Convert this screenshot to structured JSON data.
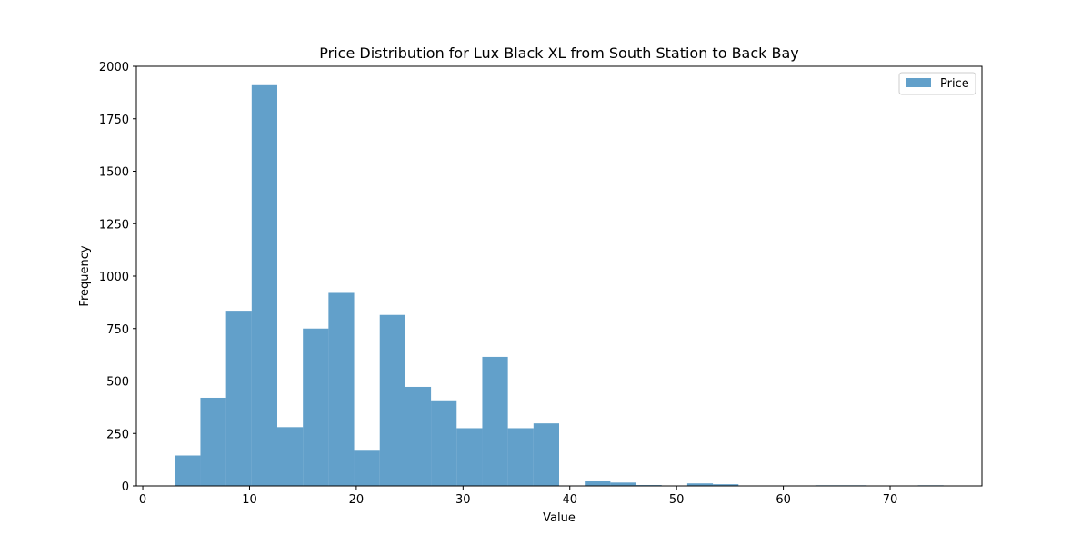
{
  "chart_data": {
    "type": "bar",
    "title": "Price Distribution for Lux Black XL from South Station to Back Bay",
    "xlabel": "Value",
    "ylabel": "Frequency",
    "xlim": [
      -0.6,
      78.6
    ],
    "ylim": [
      0,
      2000
    ],
    "xticks": [
      0,
      10,
      20,
      30,
      40,
      50,
      60,
      70
    ],
    "yticks": [
      0,
      250,
      500,
      750,
      1000,
      1250,
      1500,
      1750,
      2000
    ],
    "grid": false,
    "legend": "top-right",
    "bar_color": "#1f77b4",
    "bar_opacity": 0.7,
    "series": [
      {
        "name": "Price",
        "bins": [
          {
            "x0": 3.0,
            "x1": 5.4,
            "value": 145
          },
          {
            "x0": 5.4,
            "x1": 7.8,
            "value": 420
          },
          {
            "x0": 7.8,
            "x1": 10.2,
            "value": 835
          },
          {
            "x0": 10.2,
            "x1": 12.6,
            "value": 1910
          },
          {
            "x0": 12.6,
            "x1": 15.0,
            "value": 280
          },
          {
            "x0": 15.0,
            "x1": 17.4,
            "value": 750
          },
          {
            "x0": 17.4,
            "x1": 19.8,
            "value": 920
          },
          {
            "x0": 19.8,
            "x1": 22.2,
            "value": 172
          },
          {
            "x0": 22.2,
            "x1": 24.6,
            "value": 815
          },
          {
            "x0": 24.6,
            "x1": 27.0,
            "value": 472
          },
          {
            "x0": 27.0,
            "x1": 29.4,
            "value": 408
          },
          {
            "x0": 29.4,
            "x1": 31.8,
            "value": 275
          },
          {
            "x0": 31.8,
            "x1": 34.2,
            "value": 615
          },
          {
            "x0": 34.2,
            "x1": 36.6,
            "value": 275
          },
          {
            "x0": 36.6,
            "x1": 39.0,
            "value": 298
          },
          {
            "x0": 39.0,
            "x1": 41.4,
            "value": 0
          },
          {
            "x0": 41.4,
            "x1": 43.8,
            "value": 22
          },
          {
            "x0": 43.8,
            "x1": 46.2,
            "value": 16
          },
          {
            "x0": 46.2,
            "x1": 48.6,
            "value": 4
          },
          {
            "x0": 48.6,
            "x1": 51.0,
            "value": 0
          },
          {
            "x0": 51.0,
            "x1": 53.4,
            "value": 12
          },
          {
            "x0": 53.4,
            "x1": 55.8,
            "value": 8
          },
          {
            "x0": 55.8,
            "x1": 58.2,
            "value": 0
          },
          {
            "x0": 58.2,
            "x1": 60.6,
            "value": 0
          },
          {
            "x0": 60.6,
            "x1": 63.0,
            "value": 0
          },
          {
            "x0": 63.0,
            "x1": 65.4,
            "value": 3
          },
          {
            "x0": 65.4,
            "x1": 67.8,
            "value": 3
          },
          {
            "x0": 67.8,
            "x1": 70.2,
            "value": 0
          },
          {
            "x0": 70.2,
            "x1": 72.6,
            "value": 0
          },
          {
            "x0": 72.6,
            "x1": 75.0,
            "value": 3
          }
        ]
      }
    ]
  }
}
